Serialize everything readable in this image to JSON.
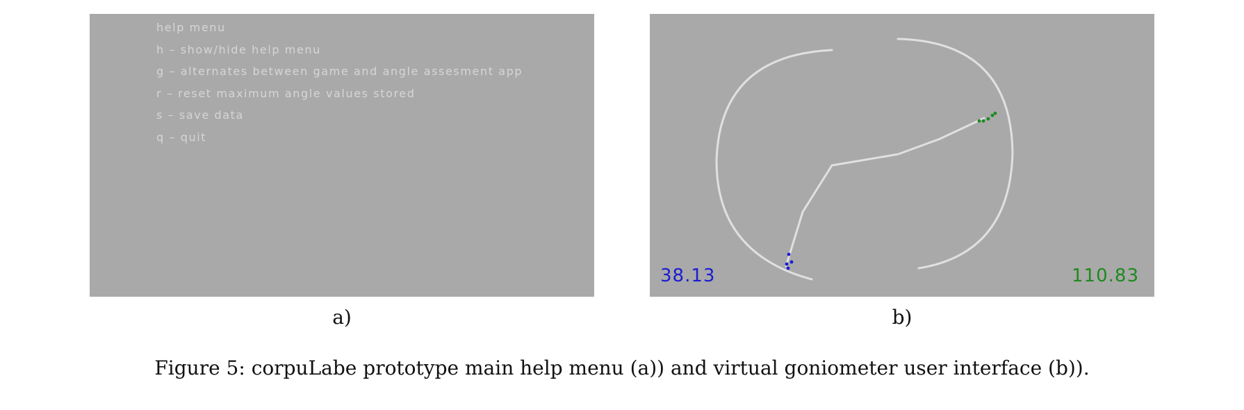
{
  "panel_a": {
    "help_title": "help menu",
    "help_items": [
      "h – show/hide help menu",
      "g – alternates between game and angle assesment app",
      "r – reset maximum angle values stored",
      "s – save data",
      "q – quit"
    ],
    "sublabel": "a)"
  },
  "panel_b": {
    "left_angle": "38.13",
    "right_angle": "110.83",
    "sublabel": "b)",
    "colors": {
      "left_marker": "#1b1bd6",
      "right_marker": "#1e8a1e",
      "skeleton": "#e0e0e0"
    }
  },
  "caption": "Figure 5: corpuLabe prototype main help menu (a)) and virtual goniometer user interface (b))."
}
